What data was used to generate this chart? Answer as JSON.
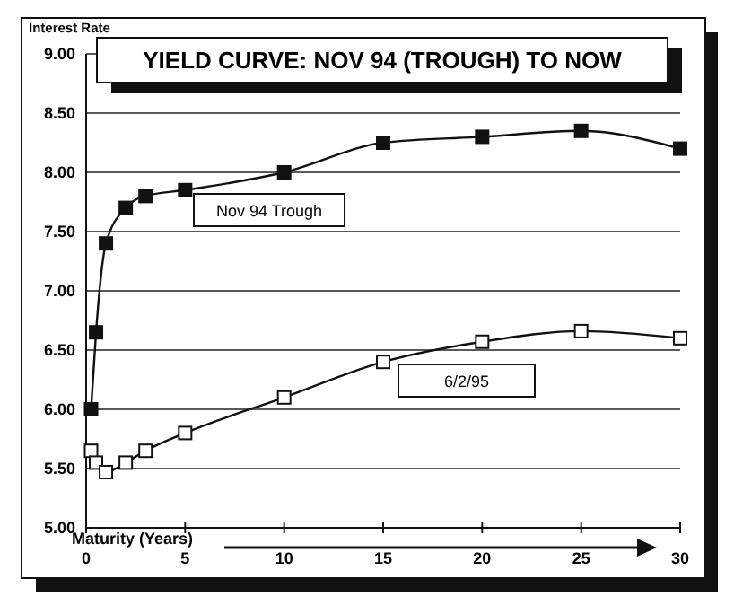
{
  "chart_data": {
    "type": "line",
    "title": "YIELD CURVE: NOV 94 (TROUGH) TO NOW",
    "xlabel": "Maturity (Years)",
    "ylabel": "Interest Rate",
    "x": [
      0.25,
      0.5,
      1,
      2,
      3,
      5,
      10,
      15,
      20,
      25,
      30
    ],
    "series": [
      {
        "name": "Nov 94 Trough",
        "color": "#111111",
        "values": [
          6.0,
          6.65,
          7.4,
          7.7,
          7.8,
          7.85,
          8.0,
          8.25,
          8.3,
          8.35,
          8.2
        ]
      },
      {
        "name": "6/2/95",
        "color": "#111111",
        "values": [
          5.65,
          5.55,
          5.47,
          5.55,
          5.65,
          5.8,
          6.1,
          6.4,
          6.57,
          6.66,
          6.6
        ]
      }
    ],
    "xlim": [
      0,
      30
    ],
    "xticks": [
      0,
      5,
      10,
      15,
      20,
      25,
      30
    ],
    "ylim": [
      5,
      9
    ],
    "yticks": [
      {
        "value": 5,
        "label": "5.00"
      },
      {
        "value": 5.5,
        "label": "5.50"
      },
      {
        "value": 6,
        "label": "6.00"
      },
      {
        "value": 6.5,
        "label": "6.50"
      },
      {
        "value": 7,
        "label": "7.00"
      },
      {
        "value": 7.5,
        "label": "7.50"
      },
      {
        "value": 8,
        "label": "8.00"
      },
      {
        "value": 8.5,
        "label": "8.50"
      },
      {
        "value": 9,
        "label": "9.00"
      }
    ],
    "grid": "y",
    "marker": "square",
    "line_style": "solid",
    "legend": false
  }
}
